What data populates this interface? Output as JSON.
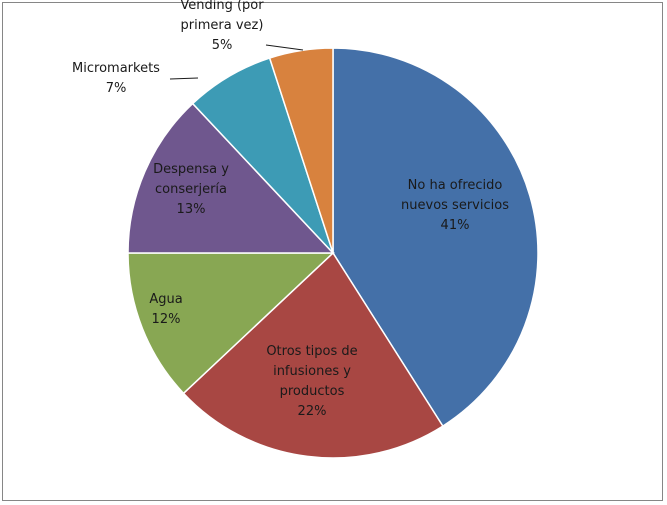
{
  "chart_data": {
    "type": "pie",
    "title": "",
    "slices": [
      {
        "lines": [
          "No ha ofrecido",
          "nuevos servicios"
        ],
        "value": 41,
        "pct": "41%",
        "color": "#4470a8"
      },
      {
        "lines": [
          "Otros tipos de",
          "infusiones y",
          "productos"
        ],
        "value": 22,
        "pct": "22%",
        "color": "#a84743"
      },
      {
        "lines": [
          "Agua"
        ],
        "value": 12,
        "pct": "12%",
        "color": "#88a753"
      },
      {
        "lines": [
          "Despensa y",
          "conserjería"
        ],
        "value": 13,
        "pct": "13%",
        "color": "#6f578e"
      },
      {
        "lines": [
          "Micromarkets"
        ],
        "value": 7,
        "pct": "7%",
        "color": "#3d9bb5"
      },
      {
        "lines": [
          "Vending (por",
          "primera vez)"
        ],
        "value": 5,
        "pct": "5%",
        "color": "#d8823e"
      }
    ],
    "start_angle": "12 o'clock",
    "direction": "clockwise",
    "legend": "none",
    "slice_border_color": "#ffffff"
  }
}
